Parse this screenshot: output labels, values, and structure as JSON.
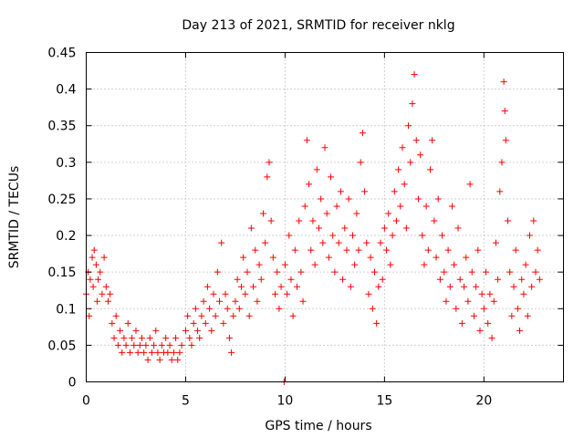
{
  "chart_data": {
    "type": "scatter",
    "title": "Day 213 of 2021, SRMTID for receiver nklg",
    "xlabel": "GPS time / hours",
    "ylabel": "SRMTID / TECUs",
    "xlim": [
      0,
      24
    ],
    "ylim": [
      0,
      0.45
    ],
    "x_ticks": [
      0,
      5,
      10,
      15,
      20
    ],
    "x_tick_labels": [
      "0",
      "5",
      "10",
      "15",
      "20"
    ],
    "y_ticks": [
      0,
      0.05,
      0.1,
      0.15,
      0.2,
      0.25,
      0.3,
      0.35,
      0.4,
      0.45
    ],
    "y_tick_labels": [
      "0",
      "0.05",
      "0.1",
      "0.15",
      "0.2",
      "0.25",
      "0.3",
      "0.35",
      "0.4",
      "0.45"
    ],
    "grid": true,
    "marker": "+",
    "series": [
      {
        "name": "SRMTID",
        "color": "#ff0000",
        "points": [
          [
            0.0,
            0.12
          ],
          [
            0.1,
            0.15
          ],
          [
            0.15,
            0.09
          ],
          [
            0.2,
            0.14
          ],
          [
            0.3,
            0.17
          ],
          [
            0.35,
            0.13
          ],
          [
            0.4,
            0.18
          ],
          [
            0.5,
            0.16
          ],
          [
            0.55,
            0.11
          ],
          [
            0.6,
            0.14
          ],
          [
            0.7,
            0.15
          ],
          [
            0.8,
            0.12
          ],
          [
            0.9,
            0.17
          ],
          [
            1.0,
            0.13
          ],
          [
            1.1,
            0.11
          ],
          [
            1.2,
            0.12
          ],
          [
            1.3,
            0.08
          ],
          [
            1.4,
            0.06
          ],
          [
            1.5,
            0.09
          ],
          [
            1.6,
            0.05
          ],
          [
            1.7,
            0.07
          ],
          [
            1.8,
            0.04
          ],
          [
            1.9,
            0.06
          ],
          [
            2.0,
            0.05
          ],
          [
            2.1,
            0.08
          ],
          [
            2.2,
            0.04
          ],
          [
            2.3,
            0.06
          ],
          [
            2.4,
            0.05
          ],
          [
            2.5,
            0.07
          ],
          [
            2.6,
            0.04
          ],
          [
            2.7,
            0.05
          ],
          [
            2.8,
            0.06
          ],
          [
            2.9,
            0.04
          ],
          [
            3.0,
            0.05
          ],
          [
            3.1,
            0.03
          ],
          [
            3.2,
            0.06
          ],
          [
            3.3,
            0.04
          ],
          [
            3.4,
            0.05
          ],
          [
            3.5,
            0.07
          ],
          [
            3.6,
            0.04
          ],
          [
            3.7,
            0.03
          ],
          [
            3.8,
            0.05
          ],
          [
            3.9,
            0.04
          ],
          [
            4.0,
            0.06
          ],
          [
            4.1,
            0.04
          ],
          [
            4.2,
            0.05
          ],
          [
            4.3,
            0.03
          ],
          [
            4.4,
            0.04
          ],
          [
            4.5,
            0.06
          ],
          [
            4.6,
            0.03
          ],
          [
            4.7,
            0.04
          ],
          [
            4.8,
            0.05
          ],
          [
            5.0,
            0.07
          ],
          [
            5.1,
            0.09
          ],
          [
            5.2,
            0.06
          ],
          [
            5.3,
            0.05
          ],
          [
            5.4,
            0.08
          ],
          [
            5.5,
            0.1
          ],
          [
            5.6,
            0.07
          ],
          [
            5.7,
            0.06
          ],
          [
            5.8,
            0.09
          ],
          [
            5.9,
            0.11
          ],
          [
            6.0,
            0.08
          ],
          [
            6.1,
            0.13
          ],
          [
            6.2,
            0.1
          ],
          [
            6.3,
            0.07
          ],
          [
            6.4,
            0.12
          ],
          [
            6.5,
            0.09
          ],
          [
            6.6,
            0.15
          ],
          [
            6.7,
            0.11
          ],
          [
            6.8,
            0.19
          ],
          [
            6.9,
            0.08
          ],
          [
            7.0,
            0.12
          ],
          [
            7.1,
            0.1
          ],
          [
            7.2,
            0.06
          ],
          [
            7.3,
            0.04
          ],
          [
            7.4,
            0.09
          ],
          [
            7.5,
            0.11
          ],
          [
            7.6,
            0.14
          ],
          [
            7.7,
            0.1
          ],
          [
            7.8,
            0.13
          ],
          [
            7.9,
            0.17
          ],
          [
            8.0,
            0.12
          ],
          [
            8.1,
            0.15
          ],
          [
            8.2,
            0.09
          ],
          [
            8.3,
            0.21
          ],
          [
            8.4,
            0.13
          ],
          [
            8.5,
            0.18
          ],
          [
            8.6,
            0.11
          ],
          [
            8.7,
            0.16
          ],
          [
            8.8,
            0.14
          ],
          [
            8.9,
            0.23
          ],
          [
            9.0,
            0.19
          ],
          [
            9.1,
            0.28
          ],
          [
            9.2,
            0.3
          ],
          [
            9.3,
            0.22
          ],
          [
            9.4,
            0.17
          ],
          [
            9.5,
            0.12
          ],
          [
            9.6,
            0.15
          ],
          [
            9.7,
            0.1
          ],
          [
            9.8,
            0.13
          ],
          [
            9.95,
            0.0
          ],
          [
            10.0,
            0.16
          ],
          [
            10.1,
            0.12
          ],
          [
            10.2,
            0.2
          ],
          [
            10.3,
            0.14
          ],
          [
            10.4,
            0.09
          ],
          [
            10.5,
            0.18
          ],
          [
            10.6,
            0.13
          ],
          [
            10.7,
            0.22
          ],
          [
            10.8,
            0.15
          ],
          [
            10.9,
            0.11
          ],
          [
            11.0,
            0.24
          ],
          [
            11.1,
            0.33
          ],
          [
            11.2,
            0.27
          ],
          [
            11.3,
            0.18
          ],
          [
            11.4,
            0.22
          ],
          [
            11.5,
            0.16
          ],
          [
            11.6,
            0.29
          ],
          [
            11.7,
            0.21
          ],
          [
            11.8,
            0.25
          ],
          [
            11.9,
            0.19
          ],
          [
            12.0,
            0.32
          ],
          [
            12.1,
            0.23
          ],
          [
            12.2,
            0.17
          ],
          [
            12.3,
            0.28
          ],
          [
            12.4,
            0.2
          ],
          [
            12.5,
            0.15
          ],
          [
            12.6,
            0.24
          ],
          [
            12.7,
            0.19
          ],
          [
            12.8,
            0.26
          ],
          [
            12.9,
            0.14
          ],
          [
            13.0,
            0.21
          ],
          [
            13.1,
            0.18
          ],
          [
            13.2,
            0.25
          ],
          [
            13.3,
            0.13
          ],
          [
            13.4,
            0.2
          ],
          [
            13.5,
            0.16
          ],
          [
            13.6,
            0.23
          ],
          [
            13.7,
            0.18
          ],
          [
            13.8,
            0.3
          ],
          [
            13.9,
            0.34
          ],
          [
            14.0,
            0.26
          ],
          [
            14.1,
            0.19
          ],
          [
            14.2,
            0.12
          ],
          [
            14.3,
            0.17
          ],
          [
            14.4,
            0.1
          ],
          [
            14.5,
            0.15
          ],
          [
            14.6,
            0.08
          ],
          [
            14.7,
            0.13
          ],
          [
            14.8,
            0.19
          ],
          [
            14.9,
            0.14
          ],
          [
            15.0,
            0.21
          ],
          [
            15.1,
            0.18
          ],
          [
            15.2,
            0.23
          ],
          [
            15.3,
            0.16
          ],
          [
            15.4,
            0.2
          ],
          [
            15.5,
            0.26
          ],
          [
            15.6,
            0.22
          ],
          [
            15.7,
            0.29
          ],
          [
            15.8,
            0.24
          ],
          [
            15.9,
            0.32
          ],
          [
            16.0,
            0.27
          ],
          [
            16.1,
            0.21
          ],
          [
            16.2,
            0.35
          ],
          [
            16.3,
            0.3
          ],
          [
            16.4,
            0.38
          ],
          [
            16.5,
            0.42
          ],
          [
            16.6,
            0.33
          ],
          [
            16.7,
            0.25
          ],
          [
            16.8,
            0.31
          ],
          [
            16.9,
            0.2
          ],
          [
            17.0,
            0.16
          ],
          [
            17.1,
            0.24
          ],
          [
            17.2,
            0.18
          ],
          [
            17.3,
            0.29
          ],
          [
            17.4,
            0.33
          ],
          [
            17.5,
            0.22
          ],
          [
            17.6,
            0.17
          ],
          [
            17.7,
            0.25
          ],
          [
            17.8,
            0.14
          ],
          [
            17.9,
            0.2
          ],
          [
            18.0,
            0.15
          ],
          [
            18.1,
            0.11
          ],
          [
            18.2,
            0.18
          ],
          [
            18.3,
            0.13
          ],
          [
            18.4,
            0.24
          ],
          [
            18.5,
            0.16
          ],
          [
            18.6,
            0.1
          ],
          [
            18.7,
            0.21
          ],
          [
            18.8,
            0.14
          ],
          [
            18.9,
            0.08
          ],
          [
            19.0,
            0.13
          ],
          [
            19.1,
            0.17
          ],
          [
            19.2,
            0.11
          ],
          [
            19.3,
            0.27
          ],
          [
            19.4,
            0.15
          ],
          [
            19.5,
            0.09
          ],
          [
            19.6,
            0.13
          ],
          [
            19.7,
            0.18
          ],
          [
            19.8,
            0.07
          ],
          [
            19.9,
            0.12
          ],
          [
            20.0,
            0.1
          ],
          [
            20.1,
            0.15
          ],
          [
            20.2,
            0.08
          ],
          [
            20.3,
            0.12
          ],
          [
            20.4,
            0.06
          ],
          [
            20.5,
            0.11
          ],
          [
            20.6,
            0.19
          ],
          [
            20.7,
            0.14
          ],
          [
            20.8,
            0.26
          ],
          [
            20.9,
            0.3
          ],
          [
            21.0,
            0.41
          ],
          [
            21.05,
            0.37
          ],
          [
            21.1,
            0.33
          ],
          [
            21.2,
            0.22
          ],
          [
            21.3,
            0.15
          ],
          [
            21.4,
            0.09
          ],
          [
            21.5,
            0.13
          ],
          [
            21.6,
            0.18
          ],
          [
            21.7,
            0.1
          ],
          [
            21.8,
            0.07
          ],
          [
            21.9,
            0.14
          ],
          [
            22.0,
            0.12
          ],
          [
            22.1,
            0.16
          ],
          [
            22.2,
            0.09
          ],
          [
            22.3,
            0.2
          ],
          [
            22.4,
            0.13
          ],
          [
            22.5,
            0.22
          ],
          [
            22.6,
            0.15
          ],
          [
            22.7,
            0.18
          ],
          [
            22.8,
            0.14
          ]
        ]
      }
    ]
  }
}
